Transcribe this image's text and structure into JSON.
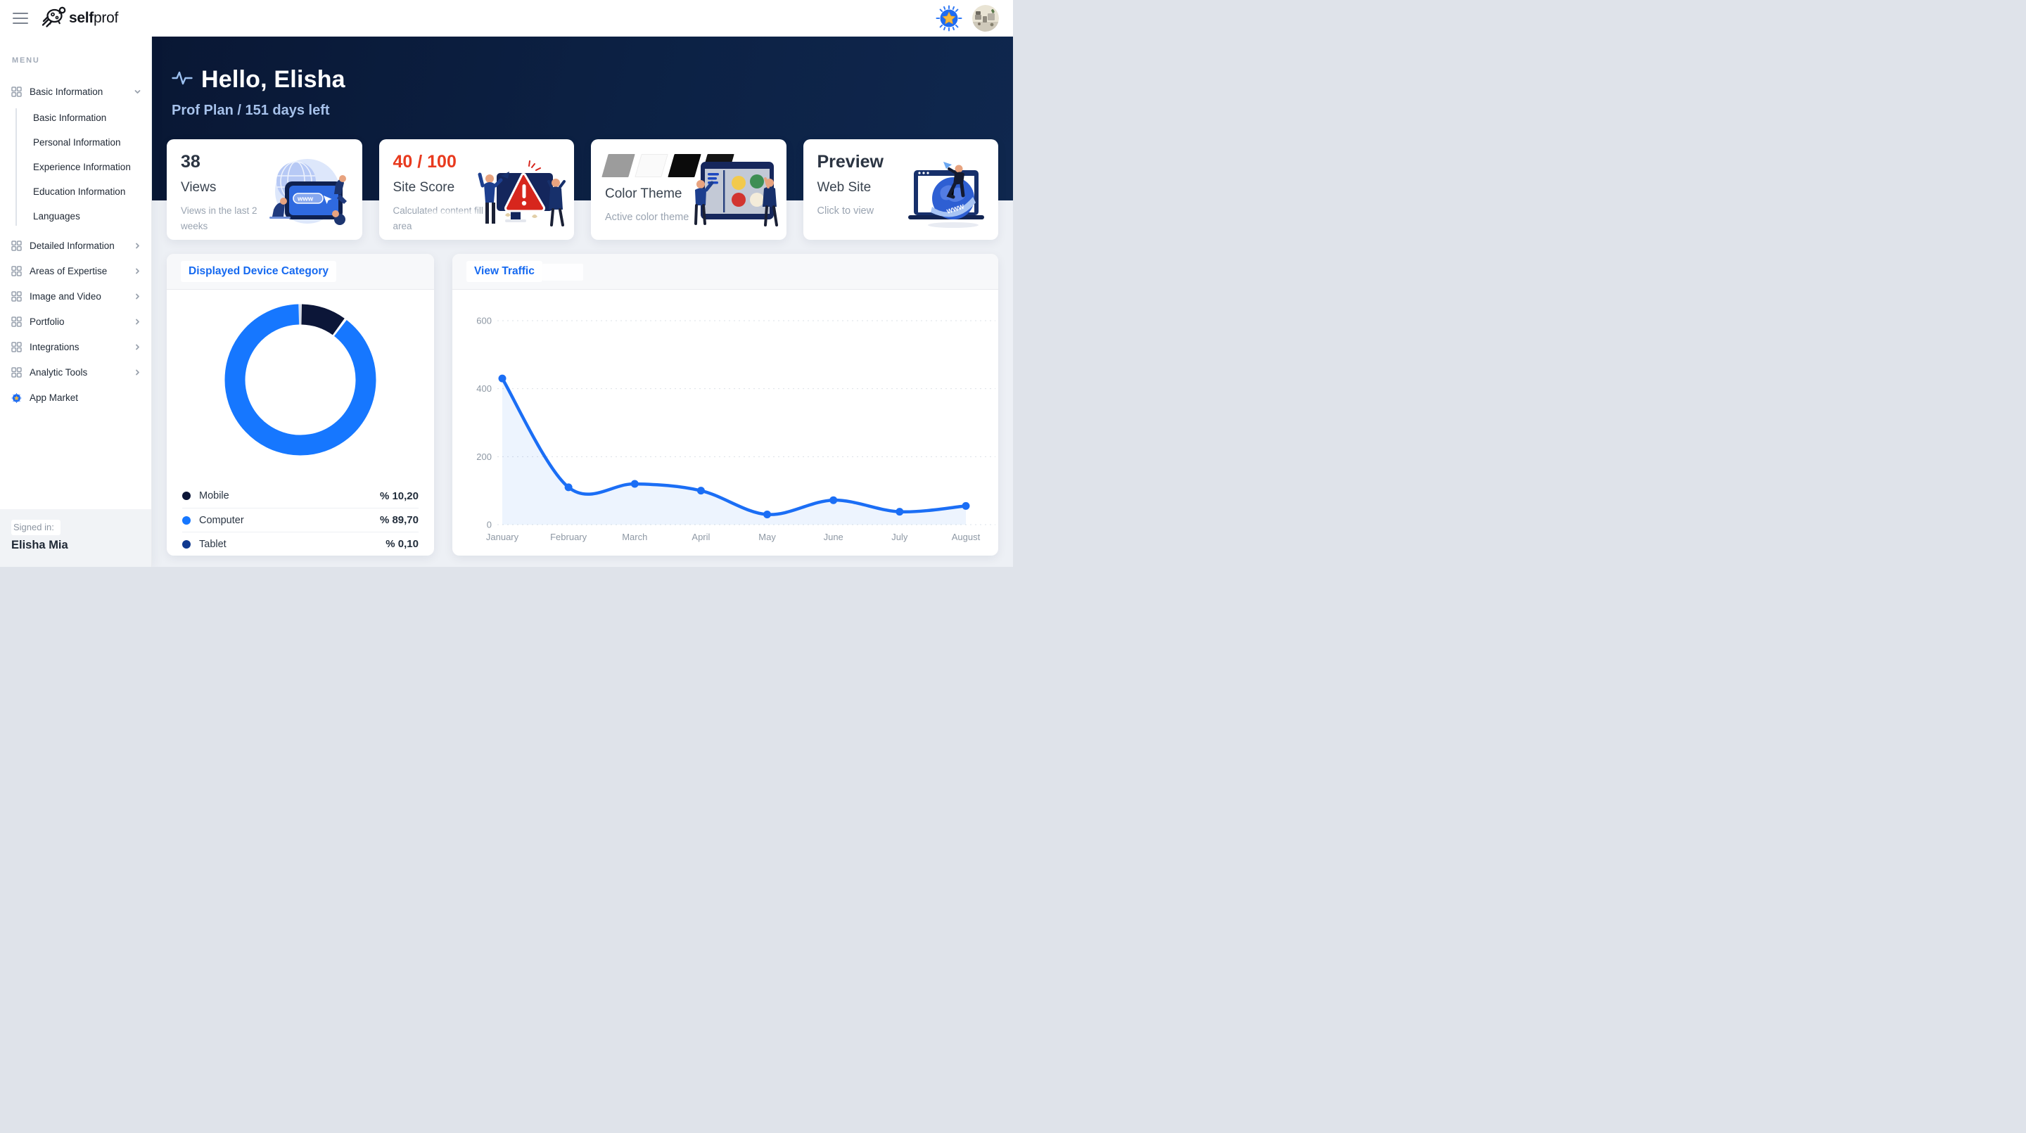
{
  "theme": {
    "accent_blue": "#1569f0",
    "danger_red": "#e83a1e",
    "hero_navy": "#0b1c3d"
  },
  "topbar": {
    "logo_bold": "self",
    "logo_regular": "prof"
  },
  "sidebar": {
    "section_label": "MENU",
    "groups": [
      {
        "label": "Basic Information",
        "expanded": true,
        "children": [
          "Basic Information",
          "Personal Information",
          "Experience Information",
          "Education Information",
          "Languages"
        ]
      },
      {
        "label": "Detailed Information"
      },
      {
        "label": "Areas of Expertise"
      },
      {
        "label": "Image and Video"
      },
      {
        "label": "Portfolio"
      },
      {
        "label": "Integrations"
      },
      {
        "label": "Analytic Tools"
      },
      {
        "label": "App Market"
      }
    ],
    "signed_in_label": "Signed in:",
    "signed_in_name": "Elisha Mia"
  },
  "hero": {
    "greeting": "Hello, Elisha",
    "plan_info": "Prof Plan / 151 days left"
  },
  "cards": [
    {
      "value": "38",
      "title": "Views",
      "subtitle": "Views in the last 2 weeks"
    },
    {
      "value": "40 / 100",
      "title": "Site Score",
      "subtitle": "Calculated content fill area"
    },
    {
      "title": "Color Theme",
      "subtitle": "Active color theme",
      "swatches": [
        "#9c9c9c",
        "#fafafa",
        "#0b0b0b",
        "#151515"
      ]
    },
    {
      "value": "Preview",
      "title": "Web Site",
      "subtitle": "Click to view"
    }
  ],
  "illustrations": {
    "views_www": "www",
    "preview_www": "WWW"
  },
  "chart_data": [
    {
      "type": "pie",
      "variant": "donut",
      "title": "Displayed Device Category",
      "legend_position": "bottom",
      "segments": [
        {
          "label": "Mobile",
          "value": 10.2,
          "display": "% 10,20",
          "color": "#0c1638"
        },
        {
          "label": "Computer",
          "value": 89.7,
          "display": "% 89,70",
          "color": "#1677ff"
        },
        {
          "label": "Tablet",
          "value": 0.1,
          "display": "% 0,10",
          "color": "#10398f"
        }
      ]
    },
    {
      "type": "line",
      "title": "View Traffic",
      "x": [
        "January",
        "February",
        "March",
        "April",
        "May",
        "June",
        "July",
        "August"
      ],
      "values": [
        430,
        110,
        120,
        100,
        30,
        72,
        38,
        55
      ],
      "ylim": [
        0,
        600
      ],
      "yticks": [
        0,
        200,
        400,
        600
      ],
      "grid": "dotted",
      "grid_color": "#dbe0e7",
      "line_color": "#1b6ef5",
      "area_color": "rgba(27,110,245,0.08)",
      "axis_label_color": "#8e98a4"
    }
  ]
}
